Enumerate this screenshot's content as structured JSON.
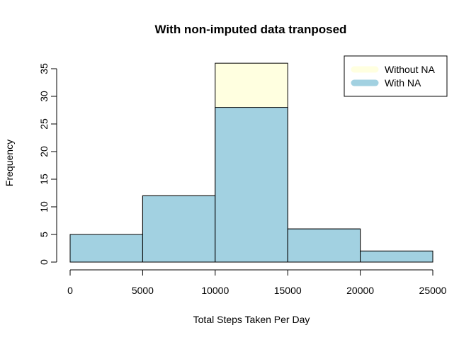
{
  "chart_data": {
    "type": "bar",
    "title": "With non-imputed data tranposed",
    "xlabel": "Total Steps Taken Per Day",
    "ylabel": "Frequency",
    "xlim": [
      0,
      25000
    ],
    "ylim": [
      0,
      35
    ],
    "x_ticks": [
      "0",
      "5000",
      "10000",
      "15000",
      "20000",
      "25000"
    ],
    "y_ticks": [
      "0",
      "5",
      "10",
      "15",
      "20",
      "25",
      "30",
      "35"
    ],
    "bins": [
      [
        0,
        5000
      ],
      [
        5000,
        10000
      ],
      [
        10000,
        15000
      ],
      [
        15000,
        20000
      ],
      [
        20000,
        25000
      ]
    ],
    "series": [
      {
        "name": "Without NA",
        "values": [
          5,
          12,
          36,
          6,
          2
        ],
        "color": "#ffffe0"
      },
      {
        "name": "With NA",
        "values": [
          5,
          12,
          28,
          6,
          2
        ],
        "color": "#a2d1e1"
      }
    ],
    "legend": "top-right",
    "grid": false
  }
}
